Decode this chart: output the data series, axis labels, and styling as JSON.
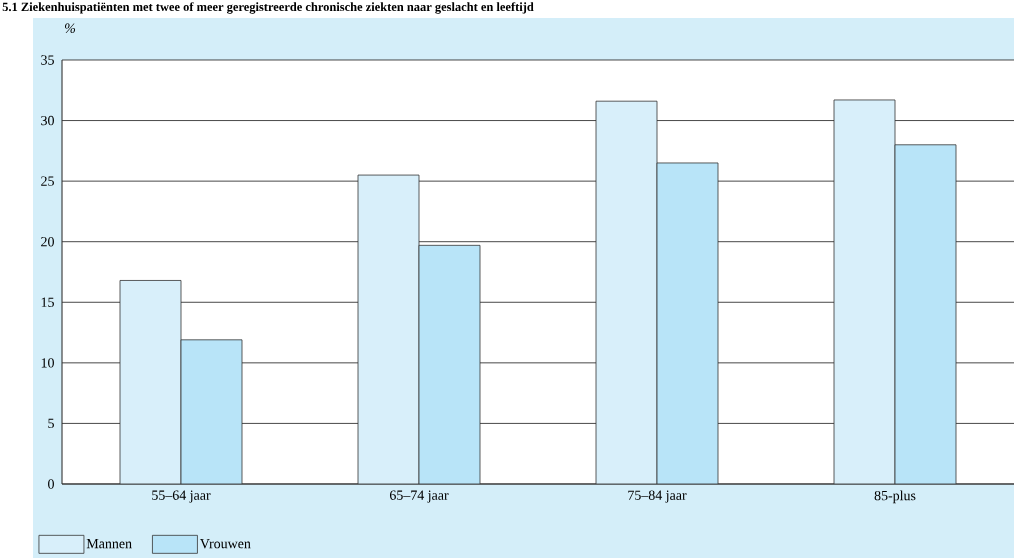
{
  "chart_data": {
    "type": "bar",
    "title": "5.1 Ziekenhuispatiënten met twee of meer geregistreerde chronische ziekten naar geslacht en leeftijd",
    "ylabel": "%",
    "categories": [
      "55–64 jaar",
      "65–74 jaar",
      "75–84 jaar",
      "85-plus"
    ],
    "series": [
      {
        "name": "Mannen",
        "color": "#d8effa",
        "values": [
          16.8,
          25.5,
          31.6,
          31.7
        ]
      },
      {
        "name": "Vrouwen",
        "color": "#b8e4f8",
        "values": [
          11.9,
          19.7,
          26.5,
          28.0
        ]
      }
    ],
    "ylim": [
      0,
      35
    ],
    "yticks": [
      0,
      5,
      10,
      15,
      20,
      25,
      30,
      35
    ],
    "grid": "y",
    "legend": "bottom left"
  }
}
